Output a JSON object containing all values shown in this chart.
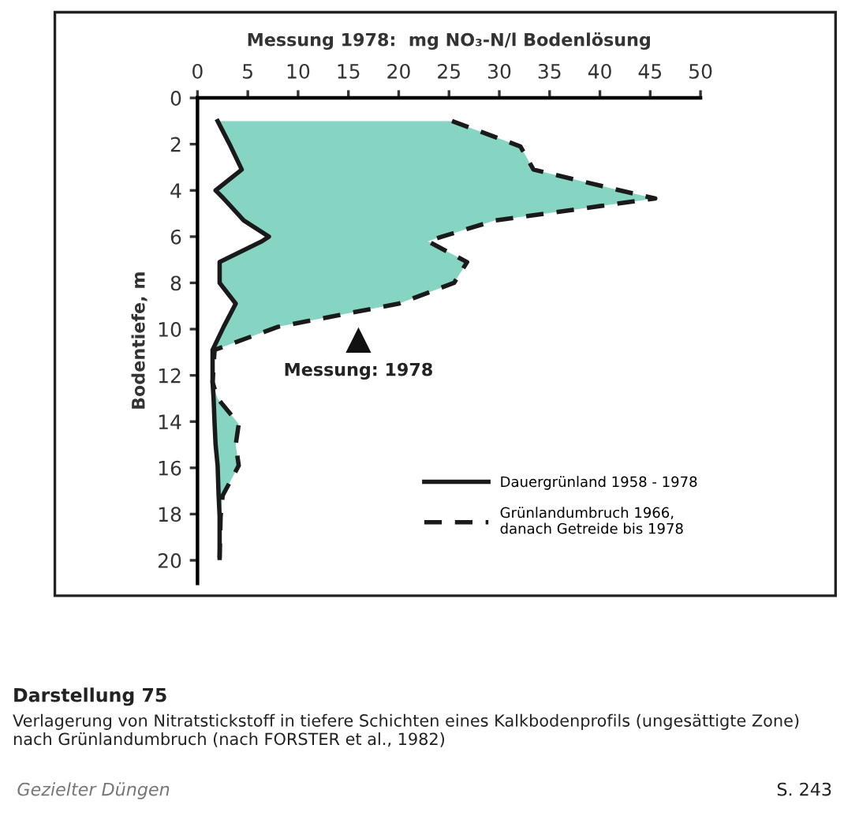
{
  "chart_data": {
    "type": "line",
    "orientation": "horizontal",
    "xlabel": "Messung 1978:  mg NO₃-N/l Bodenlösung",
    "ylabel": "Bodentiefe, m",
    "xlim": [
      0,
      50
    ],
    "xticks": [
      0,
      5,
      10,
      15,
      20,
      25,
      30,
      35,
      40,
      45,
      50
    ],
    "ylim": [
      21,
      0
    ],
    "yticks": [
      0,
      2,
      4,
      6,
      8,
      10,
      12,
      14,
      16,
      18,
      20
    ],
    "x": [
      1,
      2.1,
      3.1,
      4.0,
      4.35,
      5.3,
      6.0,
      6.2,
      7.1,
      8.0,
      8.9,
      9.9,
      10.9,
      12.3,
      13.0,
      14.1,
      15.0,
      15.9,
      17.2,
      18.1,
      19.9
    ],
    "series": [
      {
        "name": "Dauergrünland 1958 - 1978",
        "color": "#1a1a1a",
        "line_style": "solid",
        "values": [
          2.0,
          3.3,
          4.4,
          1.8,
          2.6,
          4.6,
          7.1,
          6.4,
          2.2,
          2.2,
          3.8,
          2.6,
          1.5,
          1.5,
          1.6,
          1.7,
          1.8,
          2.0,
          2.1,
          2.2,
          2.2
        ]
      },
      {
        "name": "Grünlandumbruch 1966,\ndanach Getreide bis 1978",
        "type": "area",
        "color": "#86d4c2",
        "line_style": "dashed",
        "values": [
          25.3,
          32.1,
          33.4,
          42,
          45.5,
          29.6,
          24.3,
          22.9,
          26.8,
          25.5,
          20.0,
          8.0,
          1.7,
          1.5,
          2.0,
          4.1,
          3.8,
          4.1,
          2.5,
          2.3,
          2.2
        ]
      }
    ],
    "legend": "bottom right",
    "grid": false,
    "marker": "none",
    "annotations": [
      {
        "text": "Messung: 1978",
        "x": 16,
        "y": 10.5
      },
      "Darstellung 75",
      "Verlagerung von Nitratstickstoff in tiefere Schichten eines Kalkbodenprofils (ungesättigte Zone) nach Grünlandumbruch (nach FORSTER et al., 1982)",
      "Gezielter Düngen",
      "S. 243"
    ]
  }
}
